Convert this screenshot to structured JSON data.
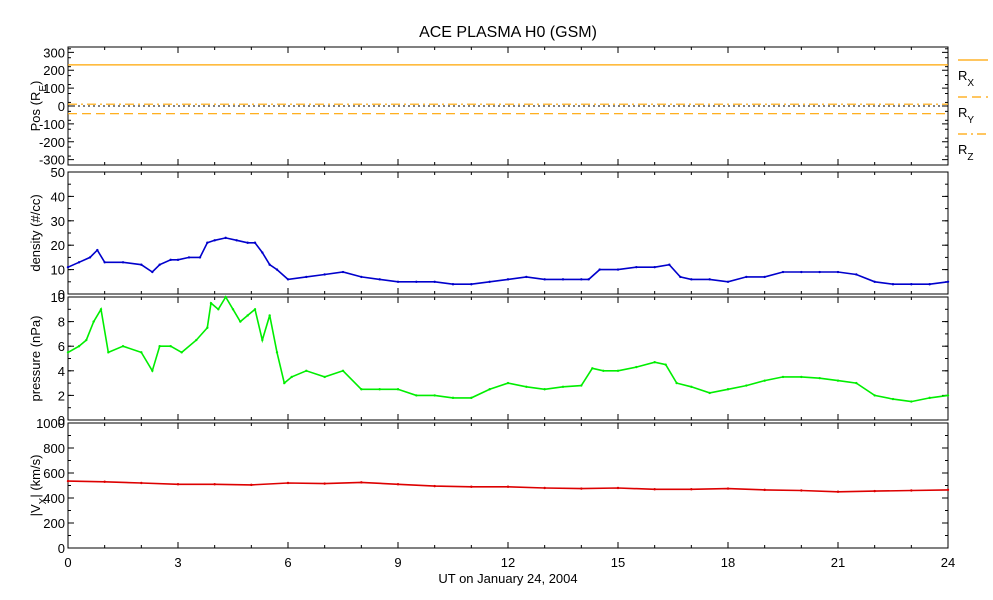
{
  "chart_data": [
    {
      "type": "line",
      "title": "ACE PLASMA H0 (GSM)",
      "ylabel": "Pos (R",
      "ylabel_sub": "E",
      "ylabel_end": ")",
      "xlim": [
        0,
        24
      ],
      "ylim": [
        -330,
        330
      ],
      "yticks": [
        300,
        200,
        100,
        0,
        -100,
        -200,
        -300
      ],
      "series": [
        {
          "name": "R",
          "sub": "X",
          "constant": 230,
          "color": "#ffa500",
          "dash": "solid"
        },
        {
          "name": "R",
          "sub": "Y",
          "constant": -43,
          "color": "#ffa500",
          "dash": "dashed"
        },
        {
          "name": "R",
          "sub": "Z",
          "constant": 10,
          "color": "#ffa500",
          "dash": "dashdot"
        }
      ],
      "zero_line": true
    },
    {
      "type": "line",
      "ylabel": "density (#/cc)",
      "xlim": [
        0,
        24
      ],
      "ylim": [
        0,
        50
      ],
      "yticks": [
        50,
        40,
        30,
        20,
        10,
        0
      ],
      "series": [
        {
          "color": "#0000cc",
          "x": [
            0,
            0.3,
            0.6,
            0.8,
            1.0,
            1.5,
            2.0,
            2.3,
            2.5,
            2.8,
            3.0,
            3.3,
            3.6,
            3.8,
            4.0,
            4.3,
            4.6,
            4.9,
            5.1,
            5.3,
            5.5,
            5.7,
            6.0,
            6.5,
            7.0,
            7.5,
            8.0,
            8.5,
            9.0,
            9.5,
            10.0,
            10.5,
            11.0,
            11.5,
            12.0,
            12.5,
            13.0,
            13.5,
            14.0,
            14.2,
            14.5,
            15.0,
            15.5,
            16.0,
            16.4,
            16.7,
            17.0,
            17.5,
            18.0,
            18.5,
            19.0,
            19.5,
            20.0,
            20.5,
            21.0,
            21.5,
            22.0,
            22.5,
            23.0,
            23.5,
            24.0
          ],
          "values": [
            11,
            13,
            15,
            18,
            13,
            13,
            12,
            9,
            12,
            14,
            14,
            15,
            15,
            21,
            22,
            23,
            22,
            21,
            21,
            17,
            12,
            10,
            6,
            7,
            8,
            9,
            7,
            6,
            5,
            5,
            5,
            4,
            4,
            5,
            6,
            7,
            6,
            6,
            6,
            6,
            10,
            10,
            11,
            11,
            12,
            7,
            6,
            6,
            5,
            7,
            7,
            9,
            9,
            9,
            9,
            8,
            5,
            4,
            4,
            4,
            5
          ]
        }
      ]
    },
    {
      "type": "line",
      "ylabel": "pressure (nPa)",
      "xlim": [
        0,
        24
      ],
      "ylim": [
        0,
        10
      ],
      "yticks": [
        10,
        8,
        6,
        4,
        2,
        0
      ],
      "series": [
        {
          "color": "#00ee00",
          "x": [
            0,
            0.3,
            0.5,
            0.7,
            0.9,
            1.1,
            1.5,
            2.0,
            2.3,
            2.5,
            2.8,
            3.1,
            3.5,
            3.8,
            3.9,
            4.1,
            4.3,
            4.5,
            4.7,
            4.9,
            5.1,
            5.3,
            5.5,
            5.7,
            5.9,
            6.1,
            6.5,
            7.0,
            7.5,
            8.0,
            8.5,
            9.0,
            9.5,
            10.0,
            10.5,
            11.0,
            11.5,
            12.0,
            12.5,
            13.0,
            13.5,
            14.0,
            14.3,
            14.6,
            15.0,
            15.5,
            16.0,
            16.3,
            16.6,
            17.0,
            17.5,
            18.0,
            18.5,
            19.0,
            19.5,
            20.0,
            20.5,
            21.0,
            21.5,
            22.0,
            22.5,
            23.0,
            23.5,
            24.0
          ],
          "values": [
            5.5,
            6.0,
            6.5,
            8.0,
            9.0,
            5.5,
            6.0,
            5.5,
            4.0,
            6.0,
            6.0,
            5.5,
            6.5,
            7.5,
            9.5,
            9.0,
            10.0,
            9.0,
            8.0,
            8.5,
            9.0,
            6.5,
            8.5,
            5.5,
            3.0,
            3.5,
            4.0,
            3.5,
            4.0,
            2.5,
            2.5,
            2.5,
            2.0,
            2.0,
            1.8,
            1.8,
            2.5,
            3.0,
            2.7,
            2.5,
            2.7,
            2.8,
            4.2,
            4.0,
            4.0,
            4.3,
            4.7,
            4.5,
            3.0,
            2.7,
            2.2,
            2.5,
            2.8,
            3.2,
            3.5,
            3.5,
            3.4,
            3.2,
            3.0,
            2.0,
            1.7,
            1.5,
            1.8,
            2.0
          ]
        }
      ]
    },
    {
      "type": "line",
      "ylabel": "|V",
      "ylabel_sub": "X",
      "ylabel_end": "| (km/s)",
      "xlabel": "UT on January 24, 2004",
      "xlim": [
        0,
        24
      ],
      "ylim": [
        0,
        1000
      ],
      "yticks": [
        1000,
        800,
        600,
        400,
        200,
        0
      ],
      "xticks": [
        0,
        3,
        6,
        9,
        12,
        15,
        18,
        21,
        24
      ],
      "series": [
        {
          "color": "#dd0000",
          "x": [
            0,
            1,
            2,
            3,
            4,
            5,
            6,
            7,
            8,
            9,
            10,
            11,
            12,
            13,
            14,
            15,
            16,
            17,
            18,
            19,
            20,
            21,
            22,
            23,
            24
          ],
          "values": [
            535,
            530,
            520,
            510,
            510,
            505,
            520,
            515,
            525,
            510,
            495,
            490,
            490,
            480,
            475,
            480,
            470,
            470,
            475,
            465,
            460,
            450,
            455,
            460,
            465
          ]
        }
      ]
    }
  ]
}
